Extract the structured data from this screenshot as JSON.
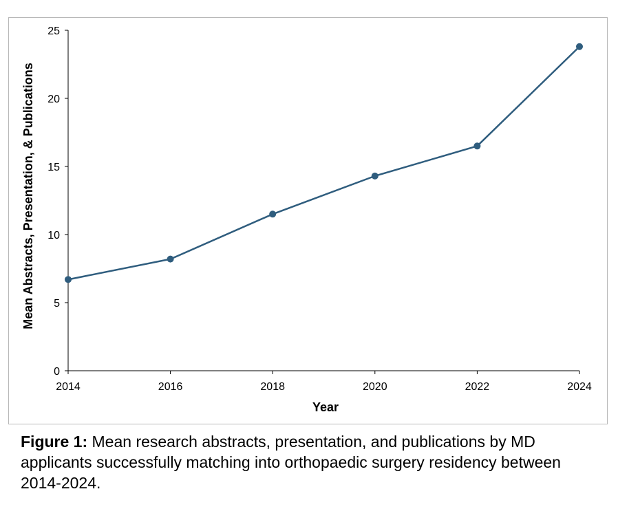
{
  "chart_data": {
    "type": "line",
    "x": [
      2014,
      2016,
      2018,
      2020,
      2022,
      2024
    ],
    "series": [
      {
        "values": [
          6.7,
          8.2,
          11.5,
          14.3,
          16.5,
          23.8
        ]
      }
    ],
    "xlabel": "Year",
    "ylabel": "Mean Abstracts, Presentation, & Publications",
    "xlim": [
      2014,
      2024
    ],
    "ylim": [
      0,
      25
    ],
    "x_ticks": [
      "2014",
      "2016",
      "2018",
      "2020",
      "2022",
      "2024"
    ],
    "y_ticks": [
      "0",
      "5",
      "10",
      "15",
      "20",
      "25"
    ],
    "line_color": "#2f5d7e",
    "grid": false
  },
  "caption": {
    "label": "Figure 1:",
    "text": " Mean research abstracts, presentation, and publications by MD applicants successfully matching into orthopaedic surgery residency between 2014-2024."
  }
}
